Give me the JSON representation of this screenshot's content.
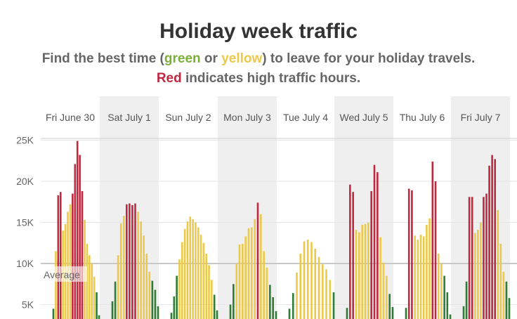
{
  "header": {
    "title": "Holiday week traffic",
    "sub1_a": "Find the best time (",
    "sub1_green": "green",
    "sub1_b": " or ",
    "sub1_yellow": "yellow",
    "sub1_c": ") to leave for your holiday travels.",
    "sub2_red": "Red",
    "sub2_b": " indicates high traffic hours."
  },
  "colors": {
    "green": "#2e7d32",
    "yellow": "#edc949",
    "red": "#c0283f",
    "shade": "#efefef"
  },
  "chart_data": {
    "type": "bar",
    "days": [
      "Fri June 30",
      "Sat  July 1",
      "Sun July 2",
      "Mon July 3",
      "Tue July 4",
      "Wed July 5",
      "Thu July 6",
      "Fri July 7"
    ],
    "shaded_days": [
      1,
      3,
      5,
      7
    ],
    "yticks": [
      {
        "value": 5000,
        "label": "5K"
      },
      {
        "value": 10000,
        "label": "10K"
      },
      {
        "value": 15000,
        "label": "15K"
      },
      {
        "value": 20000,
        "label": "20K"
      },
      {
        "value": 25000,
        "label": "25K"
      }
    ],
    "ylim": [
      3000,
      26000
    ],
    "average": {
      "value": 10000,
      "label": "Average"
    },
    "hourly": [
      {
        "values": [
          4500,
          11500,
          18300,
          18700,
          14000,
          14800,
          16300,
          17200,
          18500,
          22100,
          24900,
          23200,
          18800,
          15300,
          12400,
          11000,
          10000,
          8400,
          6500,
          3700
        ],
        "levels": [
          "g",
          "y",
          "r",
          "r",
          "y",
          "y",
          "y",
          "y",
          "r",
          "r",
          "r",
          "r",
          "r",
          "y",
          "y",
          "y",
          "y",
          "y",
          "g",
          "g"
        ]
      },
      {
        "values": [
          5400,
          7800,
          11000,
          14900,
          15800,
          17200,
          17300,
          17100,
          17300,
          16300,
          15100,
          13400,
          11200,
          9000,
          7900,
          6800,
          4800
        ],
        "levels": [
          "g",
          "g",
          "y",
          "y",
          "y",
          "r",
          "r",
          "r",
          "r",
          "y",
          "y",
          "y",
          "y",
          "y",
          "g",
          "g",
          "g"
        ]
      },
      {
        "values": [
          4000,
          6000,
          8500,
          10500,
          12600,
          14200,
          15100,
          15700,
          15400,
          15000,
          14400,
          13500,
          12500,
          11200,
          9800,
          8000,
          6200,
          4300
        ],
        "levels": [
          "g",
          "g",
          "g",
          "y",
          "y",
          "y",
          "y",
          "y",
          "y",
          "y",
          "y",
          "y",
          "y",
          "y",
          "y",
          "y",
          "g",
          "g"
        ]
      },
      {
        "values": [
          5000,
          7500,
          10000,
          12300,
          12400,
          13300,
          14300,
          14400,
          15400,
          17400,
          16000,
          11500,
          9500,
          7400,
          5900,
          4200
        ],
        "levels": [
          "g",
          "g",
          "y",
          "y",
          "y",
          "y",
          "y",
          "y",
          "y",
          "r",
          "y",
          "y",
          "y",
          "g",
          "g",
          "g"
        ]
      },
      {
        "values": [
          4500,
          6400,
          8900,
          11200,
          12700,
          12900,
          12600,
          11800,
          10800,
          9900,
          9300,
          8000,
          6500
        ],
        "levels": [
          "g",
          "g",
          "y",
          "y",
          "y",
          "y",
          "y",
          "y",
          "y",
          "y",
          "y",
          "y",
          "g"
        ]
      },
      {
        "values": [
          4600,
          19600,
          18700,
          14100,
          13800,
          14700,
          14800,
          15000,
          18800,
          22000,
          21100,
          13200,
          10100,
          8500,
          6300,
          4700
        ],
        "levels": [
          "g",
          "r",
          "r",
          "y",
          "y",
          "y",
          "y",
          "y",
          "r",
          "r",
          "r",
          "y",
          "y",
          "y",
          "g",
          "g"
        ]
      },
      {
        "values": [
          4600,
          19100,
          18900,
          13400,
          12900,
          13500,
          13300,
          14700,
          15500,
          22400,
          20000,
          11200,
          10000,
          8500,
          6500,
          3800
        ],
        "levels": [
          "g",
          "r",
          "r",
          "y",
          "y",
          "y",
          "y",
          "y",
          "y",
          "r",
          "r",
          "y",
          "y",
          "g",
          "g",
          "g"
        ]
      },
      {
        "values": [
          4800,
          7800,
          18100,
          18100,
          13700,
          14100,
          15000,
          18100,
          18500,
          21900,
          23200,
          22700,
          16500,
          12400,
          9000,
          7800,
          5800
        ],
        "levels": [
          "g",
          "g",
          "r",
          "r",
          "y",
          "y",
          "y",
          "r",
          "r",
          "r",
          "r",
          "r",
          "y",
          "y",
          "y",
          "g",
          "g"
        ]
      }
    ]
  }
}
